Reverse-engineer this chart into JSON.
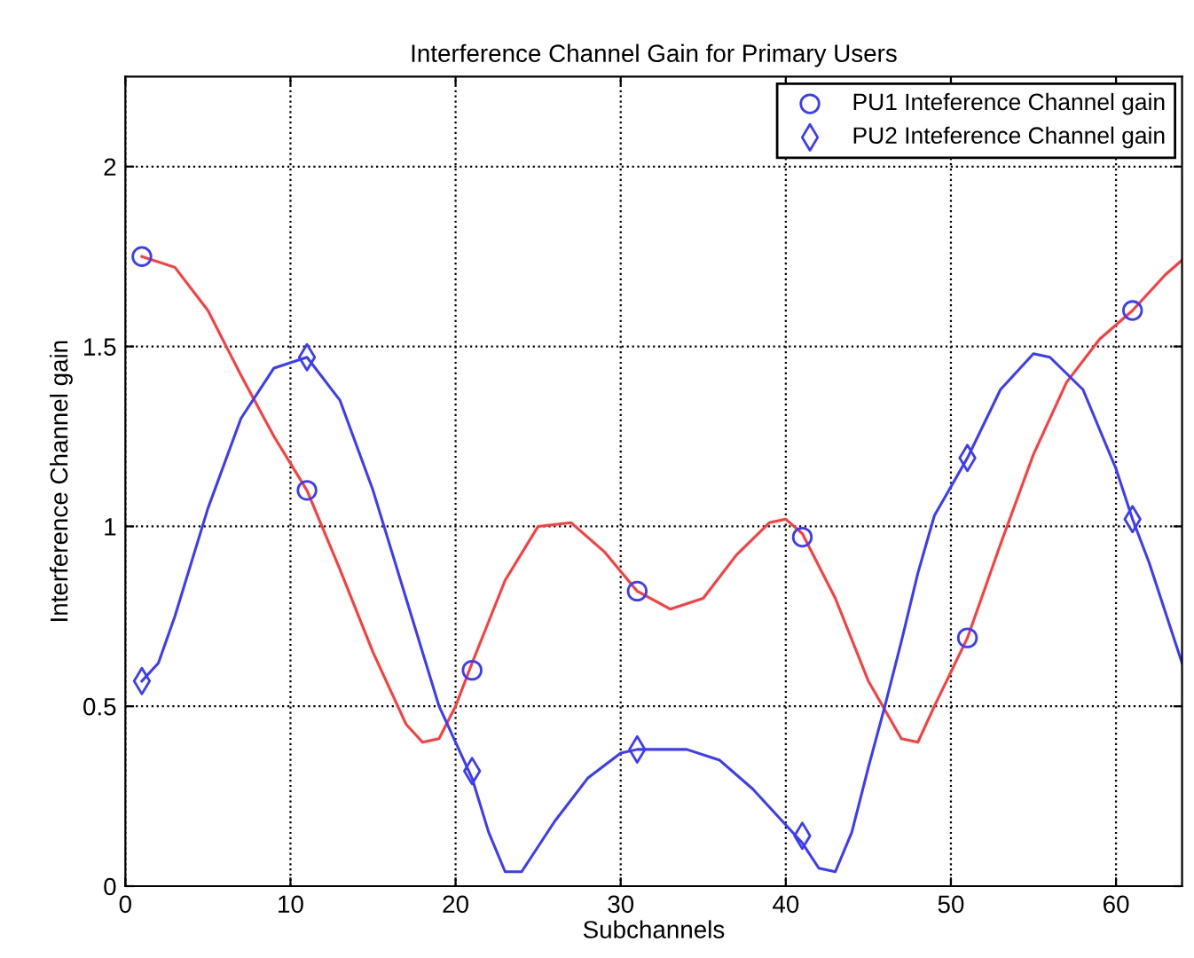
{
  "chart_data": {
    "type": "line",
    "title": "Interference Channel Gain for Primary Users",
    "xlabel": "Subchannels",
    "ylabel": "Interference Channel gain",
    "series": [
      {
        "color": "#ff3b3b",
        "marker": "none",
        "x": [
          1,
          3,
          5,
          7,
          9,
          11,
          13,
          15,
          17,
          18,
          19,
          20,
          21,
          23,
          25,
          27,
          29,
          31,
          33,
          35,
          37,
          39,
          40,
          41,
          43,
          45,
          47,
          48,
          49,
          51,
          53,
          55,
          57,
          59,
          61,
          63,
          64
        ],
        "values": [
          1.75,
          1.72,
          1.6,
          1.42,
          1.25,
          1.1,
          0.88,
          0.65,
          0.45,
          0.4,
          0.41,
          0.5,
          0.62,
          0.85,
          1.0,
          1.01,
          0.93,
          0.82,
          0.77,
          0.8,
          0.92,
          1.01,
          1.02,
          0.98,
          0.8,
          0.57,
          0.41,
          0.4,
          0.5,
          0.69,
          0.95,
          1.2,
          1.4,
          1.52,
          1.6,
          1.7,
          1.74
        ]
      },
      {
        "color": "#3b3bff",
        "marker": "none",
        "x": [
          1,
          2,
          3,
          5,
          7,
          9,
          11,
          13,
          15,
          17,
          19,
          21,
          22,
          23,
          24,
          26,
          28,
          30,
          31,
          34,
          36,
          38,
          40,
          41,
          42,
          43,
          44,
          45,
          46,
          47,
          48,
          49,
          51,
          53,
          55,
          56,
          58,
          60,
          61,
          62,
          64
        ],
        "values": [
          0.57,
          0.62,
          0.75,
          1.05,
          1.3,
          1.44,
          1.47,
          1.35,
          1.1,
          0.8,
          0.5,
          0.3,
          0.15,
          0.04,
          0.04,
          0.18,
          0.3,
          0.37,
          0.38,
          0.38,
          0.35,
          0.27,
          0.17,
          0.12,
          0.05,
          0.04,
          0.15,
          0.33,
          0.5,
          0.68,
          0.87,
          1.03,
          1.19,
          1.38,
          1.48,
          1.47,
          1.38,
          1.16,
          1.02,
          0.9,
          0.62
        ]
      },
      {
        "type": "scatter",
        "name": "PU1 Inteference Channel gain",
        "color": "#3b3bff",
        "marker": "circle",
        "x": [
          1,
          11,
          21,
          31,
          41,
          51,
          61
        ],
        "values": [
          1.75,
          1.1,
          0.6,
          0.82,
          0.97,
          0.69,
          1.6
        ]
      },
      {
        "type": "scatter",
        "name": "PU2 Inteference Channel gain",
        "color": "#3b3bff",
        "marker": "diamond",
        "x": [
          1,
          11,
          21,
          31,
          41,
          51,
          61
        ],
        "values": [
          0.57,
          1.47,
          0.32,
          0.38,
          0.14,
          1.19,
          1.02
        ]
      }
    ],
    "xlim": [
      0,
      64
    ],
    "ylim": [
      0,
      2.25
    ],
    "xticks": [
      0,
      10,
      20,
      30,
      40,
      50,
      60
    ],
    "yticks": [
      0,
      0.5,
      1,
      1.5,
      2
    ],
    "grid": true,
    "legend": "top right"
  }
}
